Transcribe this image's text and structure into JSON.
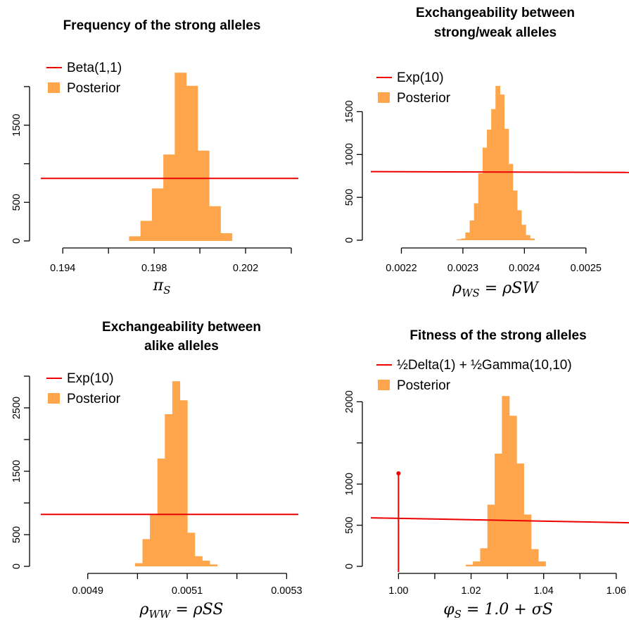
{
  "colors": {
    "posterior": "#ffa64d",
    "prior": "#ee0000",
    "axis": "#000000"
  },
  "chart_data": [
    {
      "type": "bar",
      "title": [
        "Frequency of the strong alleles"
      ],
      "xlabel": {
        "sym": "π",
        "sub": "S",
        "rest": ""
      },
      "xlim": [
        0.1935,
        0.2032
      ],
      "ylim": [
        0,
        2200
      ],
      "xticks": [
        0.194,
        0.196,
        0.198,
        0.2,
        0.202,
        0.204
      ],
      "xtick_labels": [
        "0.194",
        "",
        "0.198",
        "",
        "0.202",
        ""
      ],
      "yticks": [
        0,
        500,
        1000,
        1500,
        2000
      ],
      "ytick_labels": [
        "0",
        "500",
        "",
        "1500",
        ""
      ],
      "legend": {
        "position": "top-left",
        "entries": [
          "Beta(1,1)",
          "Posterior"
        ]
      },
      "bin_edges": [
        0.1969,
        0.1974,
        0.1979,
        0.1984,
        0.1989,
        0.1994,
        0.1999,
        0.2004,
        0.2009,
        0.2014
      ],
      "counts": [
        60,
        260,
        680,
        1120,
        2180,
        2010,
        1170,
        450,
        100
      ],
      "prior": {
        "kind": "flat",
        "y": 810
      }
    },
    {
      "type": "bar",
      "title": [
        "Exchangeability between",
        "strong/weak alleles"
      ],
      "xlabel": {
        "sym": "ρ",
        "sub": "WS",
        "rest": " = ρSW"
      },
      "xlim": [
        0.00218,
        0.002538
      ],
      "ylim": [
        0,
        1800
      ],
      "xticks": [
        0.0022,
        0.0023,
        0.0024,
        0.0025
      ],
      "xtick_labels": [
        "0.0022",
        "0.0023",
        "0.0024",
        "0.0025"
      ],
      "yticks": [
        0,
        500,
        1000,
        1500
      ],
      "ytick_labels": [
        "0",
        "500",
        "1000",
        "1500"
      ],
      "legend": {
        "position": "top-left",
        "entries": [
          "Exp(10)",
          "Posterior"
        ]
      },
      "bin_edges": [
        0.00229,
        0.002297,
        0.002304,
        0.002311,
        0.002318,
        0.002325,
        0.002332,
        0.002339,
        0.002346,
        0.002353,
        0.00236,
        0.002367,
        0.002374,
        0.002381,
        0.002388,
        0.002395,
        0.002402,
        0.002409,
        0.002416
      ],
      "counts": [
        10,
        20,
        90,
        230,
        430,
        780,
        1080,
        1290,
        1530,
        1800,
        1700,
        1300,
        890,
        580,
        350,
        180,
        60,
        20
      ],
      "prior": {
        "kind": "line",
        "y": [
          800,
          791
        ]
      }
    },
    {
      "type": "bar",
      "title": [
        "Exchangeability between",
        "alike alleles"
      ],
      "xlabel": {
        "sym": "ρ",
        "sub": "WW",
        "rest": " = ρSS"
      },
      "xlim": [
        0.004865,
        0.005315
      ],
      "ylim": [
        0,
        3000
      ],
      "xticks": [
        0.0049,
        0.005,
        0.0051,
        0.0052,
        0.0053
      ],
      "xtick_labels": [
        "0.0049",
        "",
        "0.0051",
        "",
        "0.0053"
      ],
      "yticks": [
        0,
        500,
        1000,
        1500,
        2000,
        2500,
        3000
      ],
      "ytick_labels": [
        "0",
        "500",
        "",
        "1500",
        "",
        "2500",
        ""
      ],
      "legend": {
        "position": "top-left",
        "entries": [
          "Exp(10)",
          "Posterior"
        ]
      },
      "bin_edges": [
        0.004995,
        0.00501,
        0.005025,
        0.00504,
        0.005055,
        0.00507,
        0.005085,
        0.0051,
        0.005115,
        0.00513,
        0.005145,
        0.00516
      ],
      "counts": [
        50,
        430,
        810,
        1700,
        2400,
        2920,
        2620,
        530,
        160,
        90,
        30
      ],
      "prior": {
        "kind": "flat",
        "y": 820
      }
    },
    {
      "type": "bar",
      "title": [
        "Fitness of the strong alleles"
      ],
      "xlabel": {
        "sym": "φ",
        "sub": "S",
        "rest": " = 1.0 + σS"
      },
      "xlim": [
        0.9945,
        1.0608
      ],
      "ylim": [
        0,
        2200
      ],
      "xticks": [
        1.0,
        1.01,
        1.02,
        1.03,
        1.04,
        1.05,
        1.06
      ],
      "xtick_labels": [
        "1.00",
        "",
        "1.02",
        "",
        "1.04",
        "",
        "1.06"
      ],
      "yticks": [
        0,
        500,
        1000,
        1500,
        2000
      ],
      "ytick_labels": [
        "0",
        "500",
        "1000",
        "",
        "2000"
      ],
      "legend": {
        "position": "top-left",
        "entries": [
          "½Delta(1) + ½Gamma(10,10)",
          "Posterior"
        ]
      },
      "bin_edges": [
        1.0185,
        1.0205,
        1.0225,
        1.0245,
        1.0265,
        1.0285,
        1.0305,
        1.0325,
        1.0345,
        1.0365,
        1.0385,
        1.0405
      ],
      "counts": [
        20,
        60,
        220,
        750,
        1370,
        2070,
        1830,
        1250,
        630,
        210,
        60
      ],
      "prior": {
        "kind": "line_delta",
        "y": [
          590,
          530
        ],
        "delta_x": 1.0,
        "delta_height": 1130
      }
    }
  ]
}
